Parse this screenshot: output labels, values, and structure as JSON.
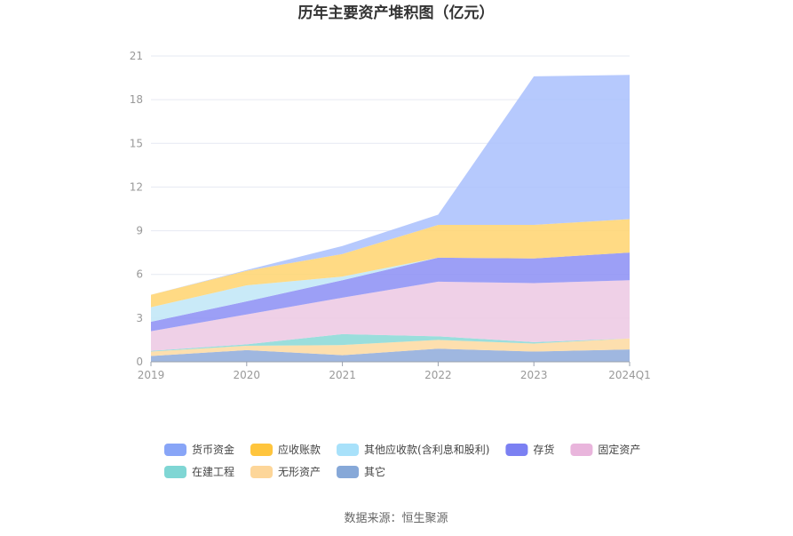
{
  "chart_data": {
    "type": "area",
    "stacked": true,
    "title": "历年主要资产堆积图（亿元）",
    "xlabel": "",
    "ylabel": "",
    "categories": [
      "2019",
      "2020",
      "2021",
      "2022",
      "2023",
      "2024Q1"
    ],
    "ylim": [
      0,
      21
    ],
    "yticks": [
      0,
      3,
      6,
      9,
      12,
      15,
      18,
      21
    ],
    "grid": true,
    "legend_position": "bottom",
    "series": [
      {
        "name": "其它",
        "color": "#8eaadb",
        "values": [
          0.4,
          0.8,
          0.45,
          0.9,
          0.7,
          0.85
        ]
      },
      {
        "name": "无形资产",
        "color": "#fdd9a0",
        "values": [
          0.3,
          0.3,
          0.7,
          0.6,
          0.55,
          0.75
        ]
      },
      {
        "name": "在建工程",
        "color": "#88d8d6",
        "values": [
          0.05,
          0.1,
          0.75,
          0.25,
          0.1,
          0.0
        ]
      },
      {
        "name": "固定资产",
        "color": "#ecc8e3",
        "values": [
          1.35,
          2.05,
          2.5,
          3.75,
          4.05,
          4.0
        ]
      },
      {
        "name": "存货",
        "color": "#8b8ef5",
        "values": [
          0.65,
          0.9,
          1.2,
          1.65,
          1.7,
          1.9
        ]
      },
      {
        "name": "其他应收款(含利息和股利)",
        "color": "#bfe6f7",
        "values": [
          1.0,
          1.1,
          0.25,
          0.0,
          0.0,
          0.0
        ]
      },
      {
        "name": "应收账款",
        "color": "#ffd36e",
        "values": [
          0.85,
          1.0,
          1.55,
          2.25,
          2.3,
          2.3
        ]
      },
      {
        "name": "货币资金",
        "color": "#a9bffd",
        "values": [
          0.0,
          0.05,
          0.55,
          0.7,
          10.2,
          9.9
        ]
      }
    ]
  },
  "legend_items": [
    {
      "label": "货币资金",
      "color": "#88a5f7"
    },
    {
      "label": "应收账款",
      "color": "#ffc53d"
    },
    {
      "label": "其他应收款(含利息和股利)",
      "color": "#a8e1fa"
    },
    {
      "label": "存货",
      "color": "#7b80f2"
    },
    {
      "label": "固定资产",
      "color": "#e9b5dc"
    },
    {
      "label": "在建工程",
      "color": "#7fd6d4"
    },
    {
      "label": "无形资产",
      "color": "#fdd699"
    },
    {
      "label": "其它",
      "color": "#86a8d8"
    }
  ],
  "source": "数据来源：恒生聚源"
}
